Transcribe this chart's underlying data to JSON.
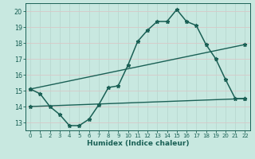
{
  "xlabel": "Humidex (Indice chaleur)",
  "xlim": [
    -0.5,
    22.5
  ],
  "ylim": [
    12.5,
    20.5
  ],
  "yticks": [
    13,
    14,
    15,
    16,
    17,
    18,
    19,
    20
  ],
  "xticks": [
    0,
    1,
    2,
    3,
    4,
    5,
    6,
    7,
    8,
    9,
    10,
    11,
    12,
    13,
    14,
    15,
    16,
    17,
    18,
    19,
    20,
    21,
    22
  ],
  "bg_color": "#c8e8e0",
  "grid_color_v": "#b8d8d0",
  "grid_color_h": "#d8c8c8",
  "line_color": "#1a6055",
  "line1_x": [
    0,
    1,
    2,
    3,
    4,
    5,
    6,
    7,
    8,
    9,
    10,
    11,
    12,
    13,
    14,
    15,
    16,
    17,
    18,
    19,
    20,
    21,
    22
  ],
  "line1_y": [
    15.1,
    14.8,
    14.0,
    13.5,
    12.8,
    12.8,
    13.2,
    14.1,
    15.2,
    15.3,
    16.6,
    18.1,
    18.8,
    19.35,
    19.35,
    20.1,
    19.35,
    19.1,
    17.9,
    17.0,
    15.7,
    14.5,
    14.5
  ],
  "line2_x": [
    0,
    22
  ],
  "line2_y": [
    15.1,
    17.9
  ],
  "line3_x": [
    0,
    22
  ],
  "line3_y": [
    14.0,
    14.5
  ]
}
